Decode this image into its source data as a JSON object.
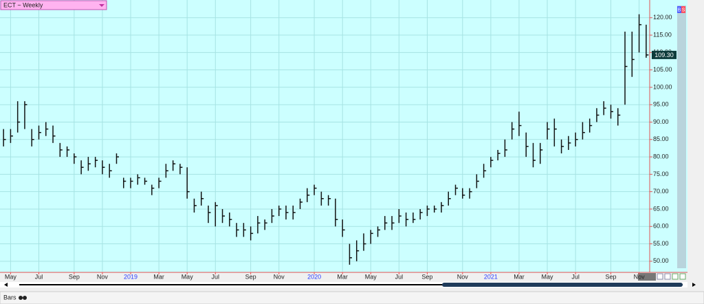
{
  "chart_data": {
    "type": "ohlc",
    "title": "ECT ~ Weekly",
    "footer_label": "Bars",
    "badges": [
      "B",
      "S"
    ],
    "last_price_label": "109.30",
    "categories": [
      null,
      "May",
      null,
      null,
      null,
      "Jul",
      null,
      null,
      null,
      null,
      "Sep",
      null,
      null,
      null,
      "Nov",
      null,
      null,
      null,
      "2019",
      null,
      null,
      null,
      "Mar",
      null,
      null,
      null,
      "May",
      null,
      null,
      null,
      "Jul",
      null,
      null,
      null,
      null,
      "Sep",
      null,
      null,
      null,
      "Nov",
      null,
      null,
      null,
      null,
      "2020",
      null,
      null,
      null,
      "Mar",
      null,
      null,
      null,
      "May",
      null,
      null,
      null,
      "Jul",
      null,
      null,
      null,
      "Sep",
      null,
      null,
      null,
      null,
      "Nov",
      null,
      null,
      null,
      "2021",
      null,
      null,
      null,
      "Mar",
      null,
      null,
      null,
      "May",
      null,
      null,
      null,
      "Jul",
      null,
      null,
      null,
      null,
      "Sep",
      null,
      null,
      null,
      "Nov",
      null
    ],
    "high": [
      88,
      88,
      96,
      96,
      88,
      89,
      90,
      89,
      84,
      83,
      81,
      79,
      80,
      80,
      79,
      78,
      81,
      74,
      74,
      75,
      74,
      72,
      74,
      78,
      79,
      78,
      77,
      68,
      70,
      66,
      67,
      65,
      64,
      61,
      61,
      60,
      63,
      62,
      65,
      66,
      66,
      66,
      68,
      71,
      72,
      70,
      69,
      68,
      62,
      55,
      56,
      58,
      59,
      60,
      63,
      63,
      65,
      64,
      64,
      65,
      66,
      66,
      67,
      70,
      72,
      71,
      71,
      75,
      78,
      80,
      82,
      85,
      90,
      93,
      87,
      84,
      84,
      90,
      91,
      85,
      86,
      87,
      90,
      91,
      94,
      96,
      95,
      94,
      116,
      116,
      121,
      118
    ],
    "low": [
      83,
      84,
      87,
      88,
      83,
      85,
      86,
      84,
      80,
      80,
      78,
      75,
      76,
      77,
      75,
      74,
      78,
      71,
      71,
      72,
      72,
      69,
      71,
      74,
      76,
      75,
      68,
      64,
      66,
      61,
      60,
      61,
      60,
      57,
      57,
      56,
      58,
      59,
      61,
      63,
      62,
      62,
      65,
      67,
      69,
      66,
      66,
      60,
      57,
      49,
      50,
      53,
      55,
      57,
      59,
      59,
      61,
      60,
      61,
      62,
      63,
      64,
      64,
      66,
      69,
      68,
      68,
      71,
      74,
      77,
      79,
      80,
      85,
      86,
      80,
      77,
      78,
      85,
      83,
      81,
      82,
      83,
      85,
      87,
      90,
      92,
      91,
      89,
      95,
      103,
      110,
      108.5
    ],
    "close": [
      85,
      86,
      90,
      95,
      85,
      87,
      88,
      86,
      82,
      82,
      80,
      77,
      78,
      79,
      77,
      76,
      80,
      73,
      73,
      74,
      73,
      71,
      73,
      76,
      78,
      77,
      70,
      66,
      68,
      64,
      66,
      63,
      62,
      59,
      59,
      58,
      61,
      61,
      63,
      65,
      64,
      64,
      67,
      69,
      71,
      68,
      68,
      62,
      59,
      51,
      53,
      55,
      58,
      59,
      61,
      61,
      63,
      62,
      62,
      64,
      65,
      65,
      66,
      68,
      71,
      69,
      70,
      73,
      76,
      79,
      81,
      82,
      88,
      89,
      83,
      79,
      82,
      88,
      88,
      83,
      84,
      85,
      87,
      89,
      92,
      94,
      93,
      92,
      106,
      108,
      118,
      109.3
    ],
    "color": "#111111",
    "ylim": [
      47,
      124.7
    ],
    "yticks": [
      {
        "value": 50,
        "label": "50.00"
      },
      {
        "value": 55,
        "label": "55.00"
      },
      {
        "value": 60,
        "label": "60.00"
      },
      {
        "value": 65,
        "label": "65.00"
      },
      {
        "value": 70,
        "label": "70.00"
      },
      {
        "value": 75,
        "label": "75.00"
      },
      {
        "value": 80,
        "label": "80.00"
      },
      {
        "value": 85,
        "label": "85.00"
      },
      {
        "value": 90,
        "label": "90.00"
      },
      {
        "value": 95,
        "label": "95.00"
      },
      {
        "value": 100,
        "label": "100.00"
      },
      {
        "value": 105,
        "label": "105.00"
      },
      {
        "value": 110,
        "label": "110.00"
      },
      {
        "value": 115,
        "label": "115.00"
      },
      {
        "value": 120,
        "label": "120.00"
      }
    ],
    "grid": true
  }
}
